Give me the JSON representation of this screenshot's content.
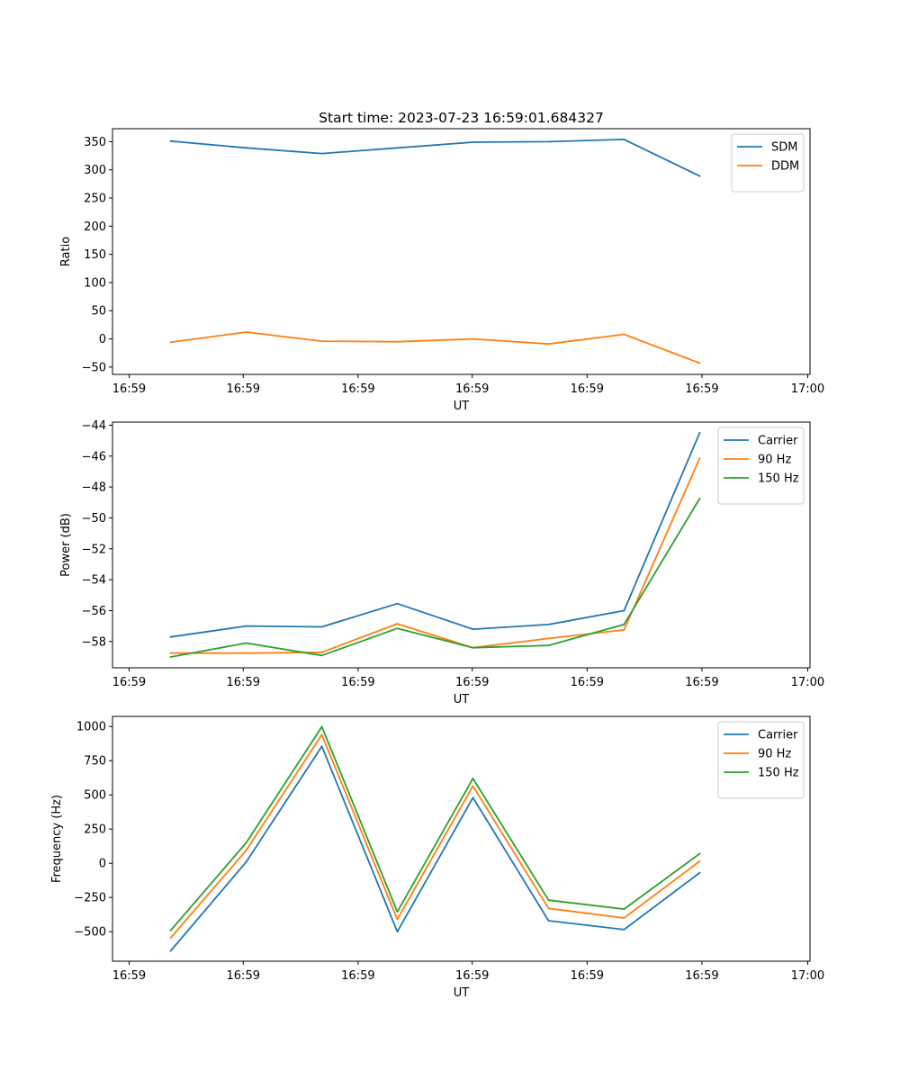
{
  "colors": {
    "blue": "#1f77b4",
    "orange": "#ff7f0e",
    "green": "#2ca02c"
  },
  "chart_data": [
    {
      "type": "line",
      "title": "Start time: 2023-07-23 16:59:01.684327",
      "xlabel": "UT",
      "ylabel": "Ratio",
      "x": [
        1,
        2,
        3,
        4,
        5,
        6,
        7,
        8
      ],
      "xlim": [
        0.23,
        9.46
      ],
      "xticks": [
        0.45,
        1.96,
        3.48,
        4.99,
        6.51,
        8.03,
        9.43
      ],
      "xtick_labels": [
        "16:59",
        "16:59",
        "16:59",
        "16:59",
        "16:59",
        "16:59",
        "17:00"
      ],
      "ylim": [
        -63,
        373
      ],
      "yticks": [
        -50,
        0,
        50,
        100,
        150,
        200,
        250,
        300,
        350
      ],
      "ytick_labels": [
        "−50",
        "0",
        "50",
        "100",
        "150",
        "200",
        "250",
        "300",
        "350"
      ],
      "legend": "top-right",
      "series": [
        {
          "name": "SDM",
          "color": "#1f77b4",
          "values": [
            351,
            339,
            329,
            339,
            349,
            350,
            354,
            289
          ]
        },
        {
          "name": "DDM",
          "color": "#ff7f0e",
          "values": [
            -6,
            12,
            -4,
            -5,
            0,
            -9,
            8,
            -43
          ]
        }
      ]
    },
    {
      "type": "line",
      "title": "",
      "xlabel": "UT",
      "ylabel": "Power (dB)",
      "x": [
        1,
        2,
        3,
        4,
        5,
        6,
        7,
        8
      ],
      "xlim": [
        0.23,
        9.46
      ],
      "xticks": [
        0.45,
        1.96,
        3.48,
        4.99,
        6.51,
        8.03,
        9.43
      ],
      "xtick_labels": [
        "16:59",
        "16:59",
        "16:59",
        "16:59",
        "16:59",
        "16:59",
        "17:00"
      ],
      "ylim": [
        -59.7,
        -43.8
      ],
      "yticks": [
        -58,
        -56,
        -54,
        -52,
        -50,
        -48,
        -46,
        -44
      ],
      "ytick_labels": [
        "−58",
        "−56",
        "−54",
        "−52",
        "−50",
        "−48",
        "−46",
        "−44"
      ],
      "legend": "top-right",
      "series": [
        {
          "name": "Carrier",
          "color": "#1f77b4",
          "values": [
            -57.7,
            -57.0,
            -57.05,
            -55.55,
            -57.2,
            -56.9,
            -56.0,
            -44.5
          ]
        },
        {
          "name": "90 Hz",
          "color": "#ff7f0e",
          "values": [
            -58.75,
            -58.75,
            -58.7,
            -56.85,
            -58.4,
            -57.8,
            -57.25,
            -46.15
          ]
        },
        {
          "name": "150 Hz",
          "color": "#2ca02c",
          "values": [
            -59.0,
            -58.1,
            -58.9,
            -57.15,
            -58.4,
            -58.25,
            -56.9,
            -48.75
          ]
        }
      ]
    },
    {
      "type": "line",
      "title": "",
      "xlabel": "UT",
      "ylabel": "Frequency (Hz)",
      "x": [
        1,
        2,
        3,
        4,
        5,
        6,
        7,
        8
      ],
      "xlim": [
        0.23,
        9.46
      ],
      "xticks": [
        0.45,
        1.96,
        3.48,
        4.99,
        6.51,
        8.03,
        9.43
      ],
      "xtick_labels": [
        "16:59",
        "16:59",
        "16:59",
        "16:59",
        "16:59",
        "16:59",
        "17:00"
      ],
      "ylim": [
        -716,
        1074
      ],
      "yticks": [
        -500,
        -250,
        0,
        250,
        500,
        750,
        1000
      ],
      "ytick_labels": [
        "−500",
        "−250",
        "0",
        "250",
        "500",
        "750",
        "1000"
      ],
      "legend": "top-right",
      "series": [
        {
          "name": "Carrier",
          "color": "#1f77b4",
          "values": [
            -640,
            10,
            855,
            -500,
            480,
            -420,
            -485,
            -70
          ]
        },
        {
          "name": "90 Hz",
          "color": "#ff7f0e",
          "values": [
            -545,
            95,
            940,
            -410,
            565,
            -330,
            -400,
            15
          ]
        },
        {
          "name": "150 Hz",
          "color": "#2ca02c",
          "values": [
            -490,
            150,
            998,
            -355,
            620,
            -270,
            -335,
            70
          ]
        }
      ]
    }
  ]
}
